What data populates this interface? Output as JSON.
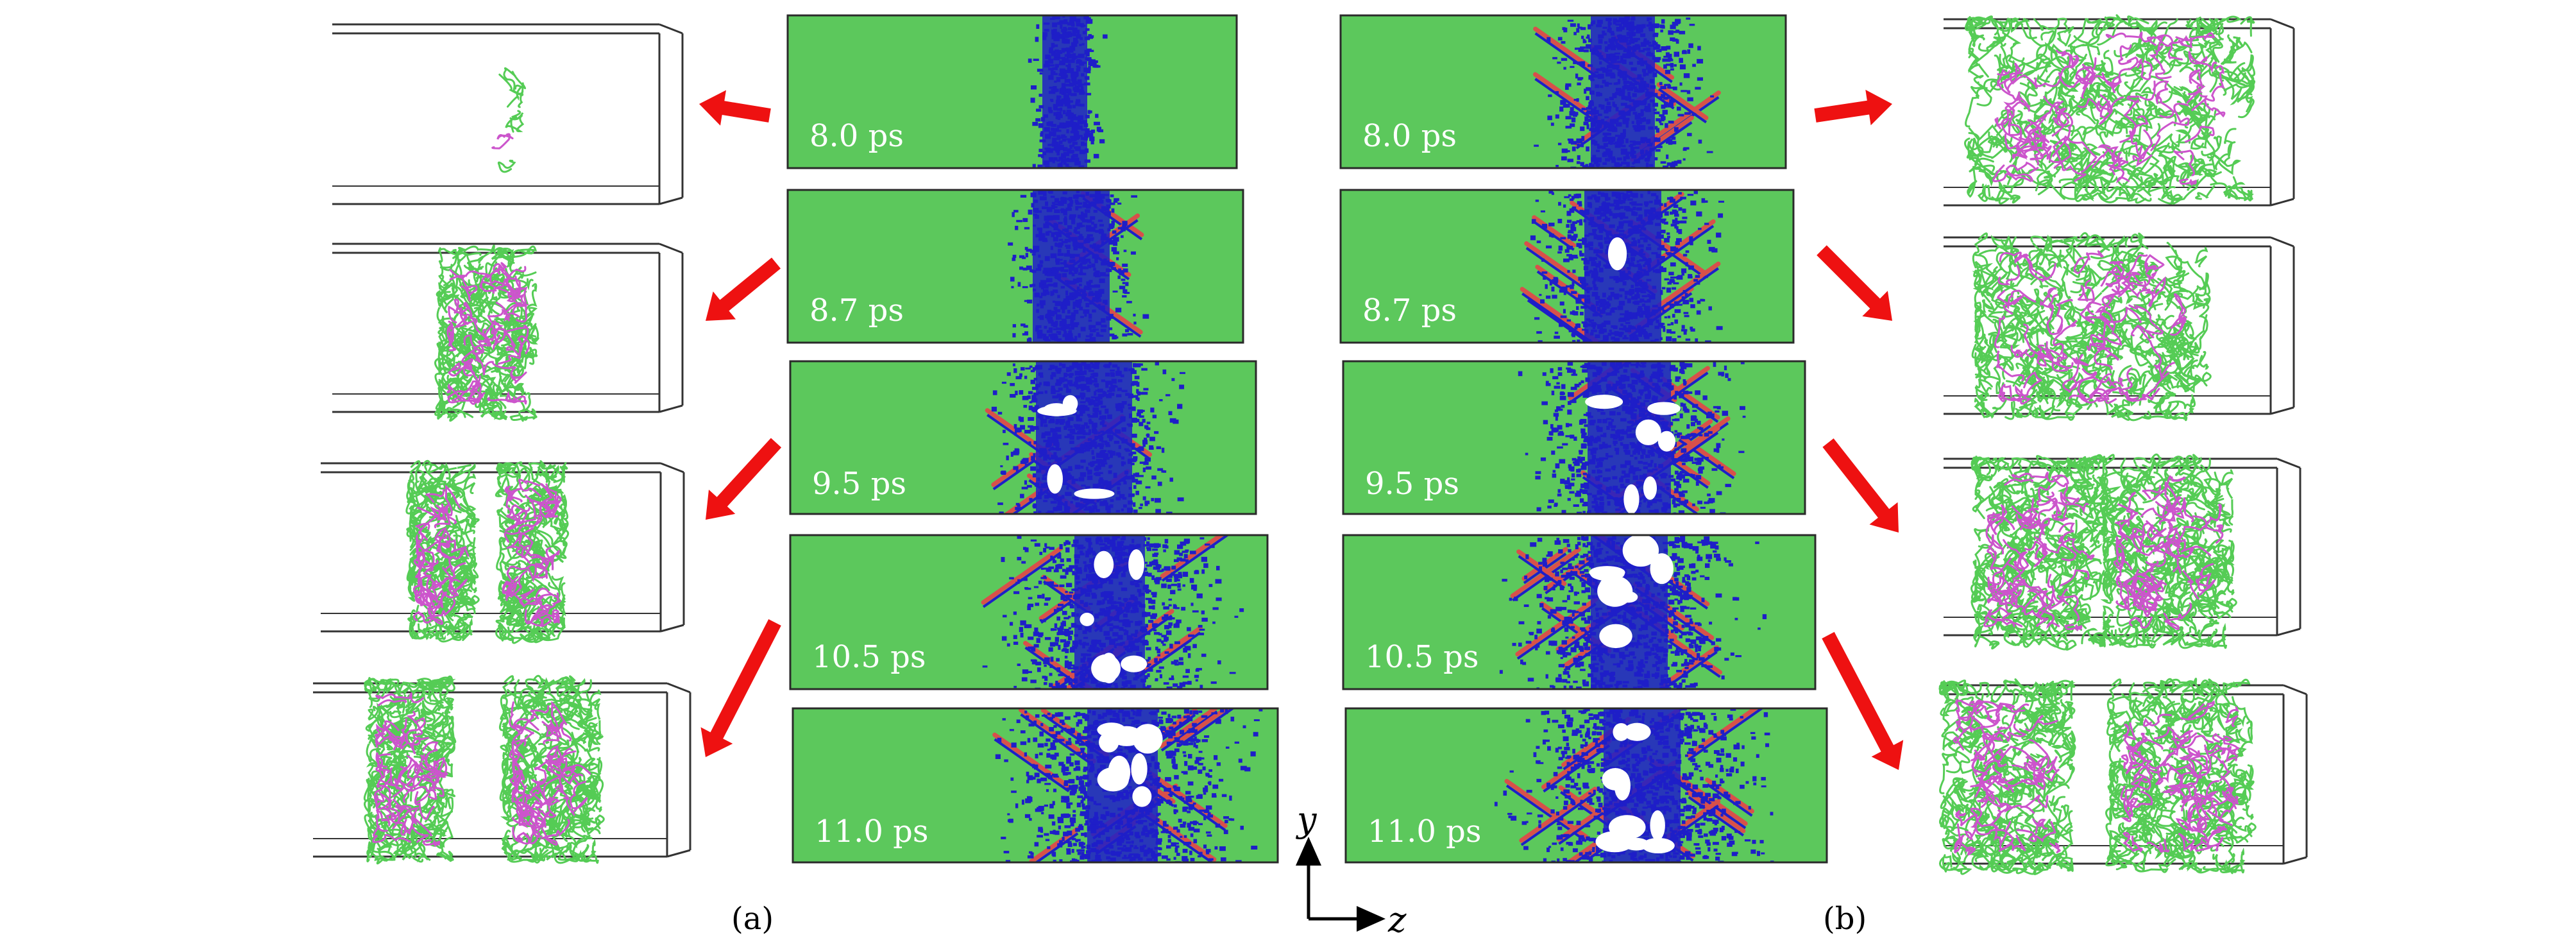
{
  "panels": {
    "a": {
      "caption": "(a)",
      "times": [
        "8.0 ps",
        "8.7 ps",
        "9.5 ps",
        "10.5 ps",
        "11.0 ps"
      ]
    },
    "b": {
      "caption": "(b)",
      "times": [
        "8.0 ps",
        "8.7 ps",
        "9.5 ps",
        "10.5 ps",
        "11.0 ps"
      ]
    }
  },
  "axes": {
    "y": "y",
    "z": "z"
  },
  "colors": {
    "lattice_green": "#5cc85c",
    "defect_blue": "#1e1ec8",
    "twin_red": "#d8504a",
    "arrow_red": "#ee1111",
    "dislocation_green": "#55cc55",
    "dislocation_magenta": "#cc55cc",
    "box_outline": "#333333"
  }
}
